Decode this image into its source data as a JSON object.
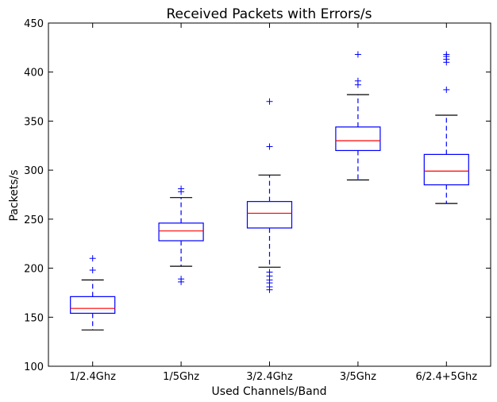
{
  "chart_data": {
    "type": "box",
    "title": "Received Packets with Errors/s",
    "xlabel": "Used Channels/Band",
    "ylabel": "Packets/s",
    "ylim": [
      100,
      450
    ],
    "yticks": [
      100,
      150,
      200,
      250,
      300,
      350,
      400,
      450
    ],
    "grid": false,
    "colors": {
      "box": "#0000ff",
      "median": "#ff0000",
      "cap": "#000000",
      "flier": "#0000ff"
    },
    "categories": [
      "1/2.4Ghz",
      "1/5Ghz",
      "3/2.4Ghz",
      "3/5Ghz",
      "6/2.4+5Ghz"
    ],
    "boxes": [
      {
        "label": "1/2.4Ghz",
        "whislo": 137,
        "q1": 154,
        "median": 159,
        "q3": 171,
        "whishi": 188,
        "fliers": [
          198,
          210
        ]
      },
      {
        "label": "1/5Ghz",
        "whislo": 202,
        "q1": 228,
        "median": 238,
        "q3": 246,
        "whishi": 272,
        "fliers": [
          186,
          189,
          278,
          281
        ]
      },
      {
        "label": "3/2.4Ghz",
        "whislo": 201,
        "q1": 241,
        "median": 256,
        "q3": 268,
        "whishi": 295,
        "fliers": [
          178,
          181,
          185,
          188,
          192,
          196,
          324,
          370
        ]
      },
      {
        "label": "3/5Ghz",
        "whislo": 290,
        "q1": 320,
        "median": 330,
        "q3": 344,
        "whishi": 377,
        "fliers": [
          387,
          391,
          418
        ]
      },
      {
        "label": "6/2.4+5Ghz",
        "whislo": 266,
        "q1": 285,
        "median": 299,
        "q3": 316,
        "whishi": 356,
        "fliers": [
          382,
          410,
          413,
          416,
          418
        ]
      }
    ]
  }
}
